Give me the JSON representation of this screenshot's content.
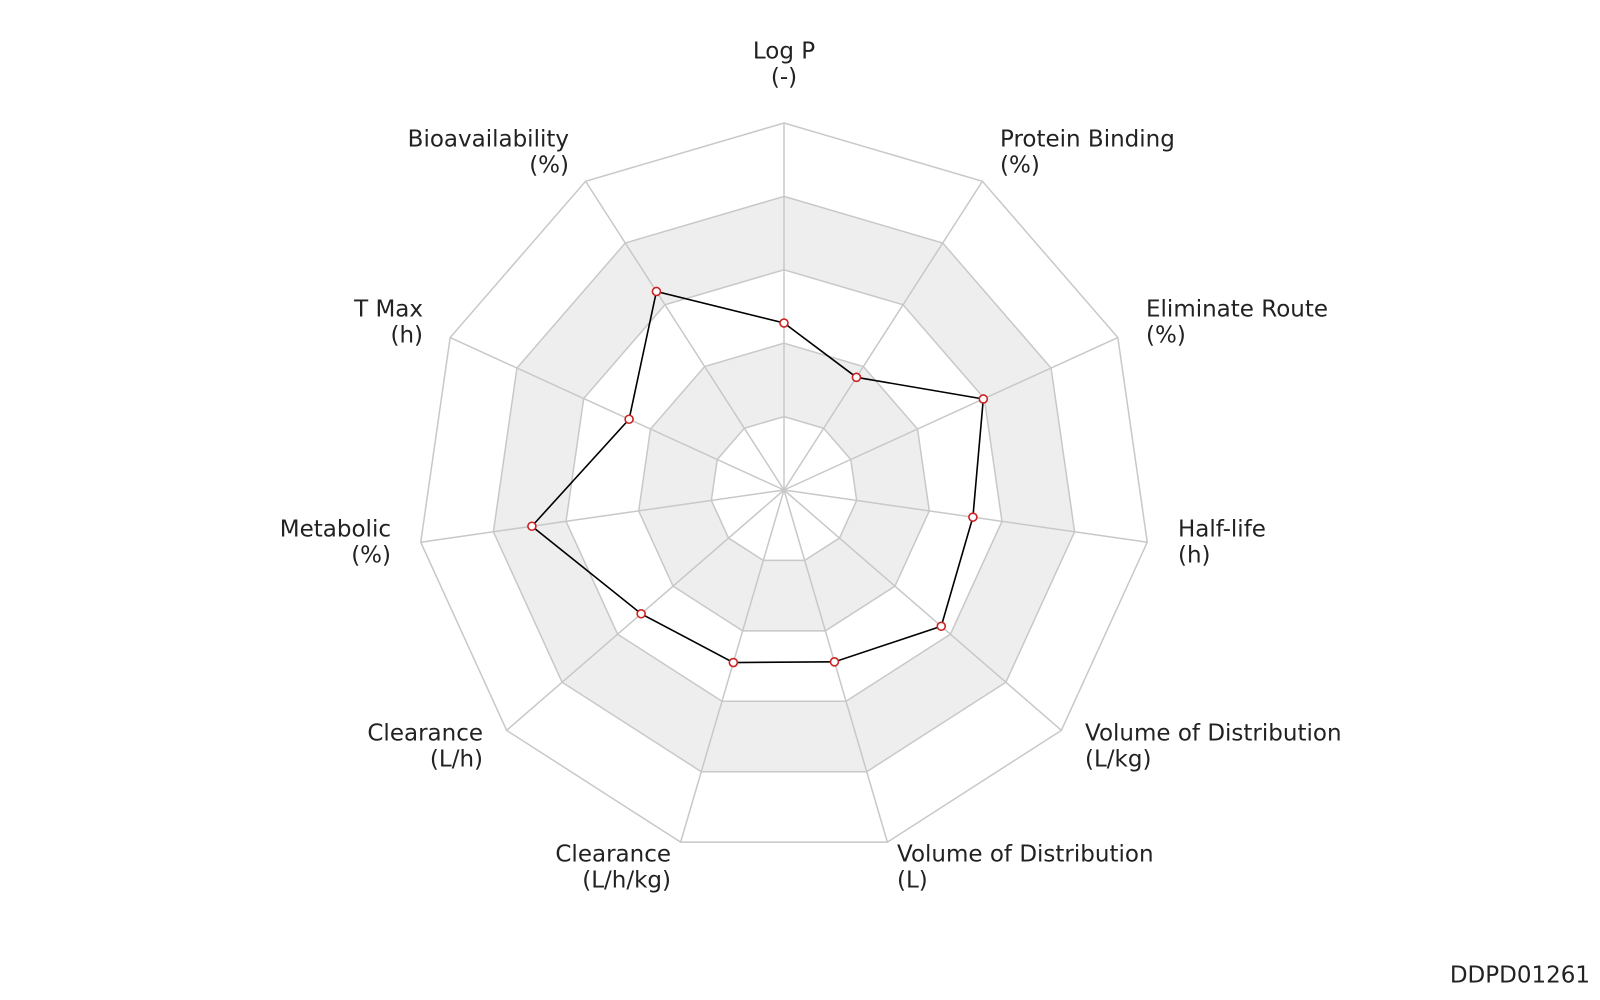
{
  "chart_data": {
    "type": "radar",
    "categories": [
      "Log P",
      "Protein Binding",
      "Eliminate Route",
      "Half-life",
      "Volume of Distribution",
      "Volume of Distribution",
      "Clearance",
      "Clearance",
      "Metabolic",
      "T Max",
      "Bioavailability"
    ],
    "units": [
      "(-)",
      "(%)",
      "(%)",
      "(h)",
      "(L/kg)",
      "(L)",
      "(L/h/kg)",
      "(L/h)",
      "(%)",
      "(h)",
      "(%)"
    ],
    "series": [
      {
        "color": "#000000",
        "marker_color": "#cc2222",
        "values": [
          0.455,
          0.365,
          0.597,
          0.52,
          0.567,
          0.488,
          0.49,
          0.515,
          0.694,
          0.464,
          0.643
        ]
      }
    ],
    "ylim": [
      0,
      1
    ],
    "yticks": [
      0.2,
      0.4,
      0.6,
      0.8,
      1
    ],
    "grid": true,
    "footer": "DDPD01261"
  }
}
